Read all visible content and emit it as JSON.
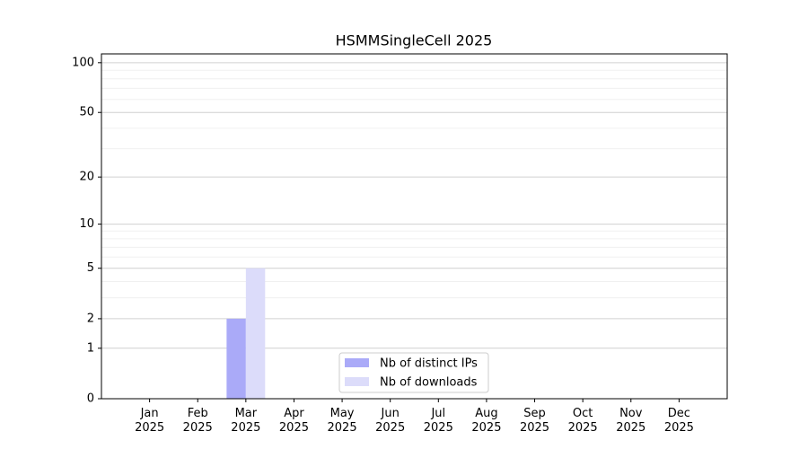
{
  "chart_data": {
    "type": "bar",
    "title": "HSMMSingleCell 2025",
    "categories": [
      "Jan\n2025",
      "Feb\n2025",
      "Mar\n2025",
      "Apr\n2025",
      "May\n2025",
      "Jun\n2025",
      "Jul\n2025",
      "Aug\n2025",
      "Sep\n2025",
      "Oct\n2025",
      "Nov\n2025",
      "Dec\n2025"
    ],
    "series": [
      {
        "name": "Nb of distinct IPs",
        "color": "#aaaaf8",
        "values": [
          0,
          0,
          2,
          0,
          0,
          0,
          0,
          0,
          0,
          0,
          0,
          0
        ]
      },
      {
        "name": "Nb of downloads",
        "color": "#dcdcfa",
        "values": [
          0,
          0,
          5,
          0,
          0,
          0,
          0,
          0,
          0,
          0,
          0,
          0
        ]
      }
    ],
    "y_scale": "log1p",
    "ylim": [
      0,
      113
    ],
    "yticks": [
      0,
      1,
      2,
      5,
      10,
      20,
      50,
      100
    ],
    "minor_yticks": [
      3,
      4,
      6,
      7,
      8,
      9,
      30,
      40,
      60,
      70,
      80,
      90
    ],
    "grid": true,
    "legend": "lower center"
  }
}
